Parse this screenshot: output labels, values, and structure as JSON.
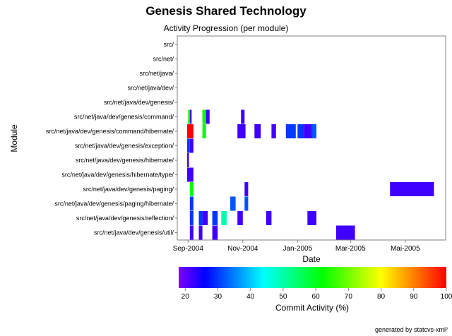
{
  "title": "Genesis Shared Technology",
  "subtitle": "Activity Progression (per module)",
  "footer": "generated by statcvs-xml²",
  "chart_data": {
    "type": "heatmap",
    "title": "Genesis Shared Technology",
    "subtitle": "Activity Progression (per module)",
    "xlabel": "Date",
    "ylabel": "Module",
    "x_range": [
      "2004-08-20",
      "2005-06-15"
    ],
    "x_ticks": [
      {
        "date": "2004-09-01",
        "label": "Sep-2004"
      },
      {
        "date": "2004-11-01",
        "label": "Nov-2004"
      },
      {
        "date": "2005-01-01",
        "label": "Jan-2005"
      },
      {
        "date": "2005-03-01",
        "label": "Mar-2005"
      },
      {
        "date": "2005-05-01",
        "label": "Mai-2005"
      }
    ],
    "modules": [
      "src/",
      "src/net/",
      "src/net/java/",
      "src/net/java/dev/",
      "src/net/java/dev/genesis/",
      "src/net/java/dev/genesis/command/",
      "src/net/java/dev/genesis/command/hibernate/",
      "src/net/java/dev/genesis/exception/",
      "src/net/java/dev/genesis/hibernate/",
      "src/net/java/dev/genesis/hibernate/type/",
      "src/net/java/dev/genesis/paging/",
      "src/net/java/dev/genesis/paging/hibernate/",
      "src/net/java/dev/genesis/reflection/",
      "src/net/java/dev/genesis/util/"
    ],
    "activity": [
      {
        "module": 5,
        "start": "2004-09-01",
        "end": "2004-09-03",
        "value": 64
      },
      {
        "module": 5,
        "start": "2004-09-03",
        "end": "2004-09-05",
        "value": 22
      },
      {
        "module": 5,
        "start": "2004-09-17",
        "end": "2004-09-21",
        "value": 62
      },
      {
        "module": 5,
        "start": "2004-09-21",
        "end": "2004-09-25",
        "value": 22
      },
      {
        "module": 5,
        "start": "2004-10-30",
        "end": "2004-11-03",
        "value": 22
      },
      {
        "module": 6,
        "start": "2004-08-31",
        "end": "2004-09-07",
        "value": 100
      },
      {
        "module": 6,
        "start": "2004-09-17",
        "end": "2004-09-21",
        "value": 62
      },
      {
        "module": 6,
        "start": "2004-10-26",
        "end": "2004-11-04",
        "value": 22
      },
      {
        "module": 6,
        "start": "2004-11-14",
        "end": "2004-11-21",
        "value": 22
      },
      {
        "module": 6,
        "start": "2004-12-03",
        "end": "2004-12-08",
        "value": 22
      },
      {
        "module": 6,
        "start": "2004-12-19",
        "end": "2004-12-30",
        "value": 30
      },
      {
        "module": 6,
        "start": "2005-01-01",
        "end": "2005-01-08",
        "value": 30
      },
      {
        "module": 6,
        "start": "2005-01-08",
        "end": "2005-01-17",
        "value": 22
      },
      {
        "module": 6,
        "start": "2005-01-17",
        "end": "2005-01-22",
        "value": 32
      },
      {
        "module": 7,
        "start": "2004-08-31",
        "end": "2004-09-03",
        "value": 30
      },
      {
        "module": 7,
        "start": "2004-09-03",
        "end": "2004-09-07",
        "value": 22
      },
      {
        "module": 8,
        "start": "2004-08-31",
        "end": "2004-09-02",
        "value": 22
      },
      {
        "module": 9,
        "start": "2004-08-31",
        "end": "2004-09-07",
        "value": 22
      },
      {
        "module": 10,
        "start": "2004-09-03",
        "end": "2004-09-07",
        "value": 62
      },
      {
        "module": 10,
        "start": "2004-11-03",
        "end": "2004-11-07",
        "value": 22
      },
      {
        "module": 10,
        "start": "2005-04-14",
        "end": "2005-06-02",
        "value": 22
      },
      {
        "module": 11,
        "start": "2004-09-03",
        "end": "2004-09-07",
        "value": 30
      },
      {
        "module": 11,
        "start": "2004-10-18",
        "end": "2004-10-24",
        "value": 32
      },
      {
        "module": 11,
        "start": "2004-11-03",
        "end": "2004-11-07",
        "value": 32
      },
      {
        "module": 12,
        "start": "2004-09-03",
        "end": "2004-09-07",
        "value": 30
      },
      {
        "module": 12,
        "start": "2004-09-13",
        "end": "2004-09-17",
        "value": 30
      },
      {
        "module": 12,
        "start": "2004-09-17",
        "end": "2004-09-23",
        "value": 22
      },
      {
        "module": 12,
        "start": "2004-09-28",
        "end": "2004-10-04",
        "value": 30
      },
      {
        "module": 12,
        "start": "2004-10-08",
        "end": "2004-10-14",
        "value": 50
      },
      {
        "module": 12,
        "start": "2004-10-26",
        "end": "2004-11-01",
        "value": 22
      },
      {
        "module": 12,
        "start": "2004-11-27",
        "end": "2004-12-03",
        "value": 22
      },
      {
        "module": 12,
        "start": "2005-01-12",
        "end": "2005-01-22",
        "value": 22
      },
      {
        "module": 13,
        "start": "2004-09-03",
        "end": "2004-09-07",
        "value": 22
      },
      {
        "module": 13,
        "start": "2004-09-13",
        "end": "2004-09-17",
        "value": 22
      },
      {
        "module": 13,
        "start": "2004-09-28",
        "end": "2004-10-04",
        "value": 22
      },
      {
        "module": 13,
        "start": "2005-02-13",
        "end": "2005-03-06",
        "value": 22
      }
    ],
    "colorbar": {
      "label": "Commit Activity (%)",
      "range": [
        18,
        100
      ],
      "ticks": [
        20,
        30,
        40,
        50,
        60,
        70,
        80,
        90,
        100
      ]
    },
    "grid": false
  }
}
